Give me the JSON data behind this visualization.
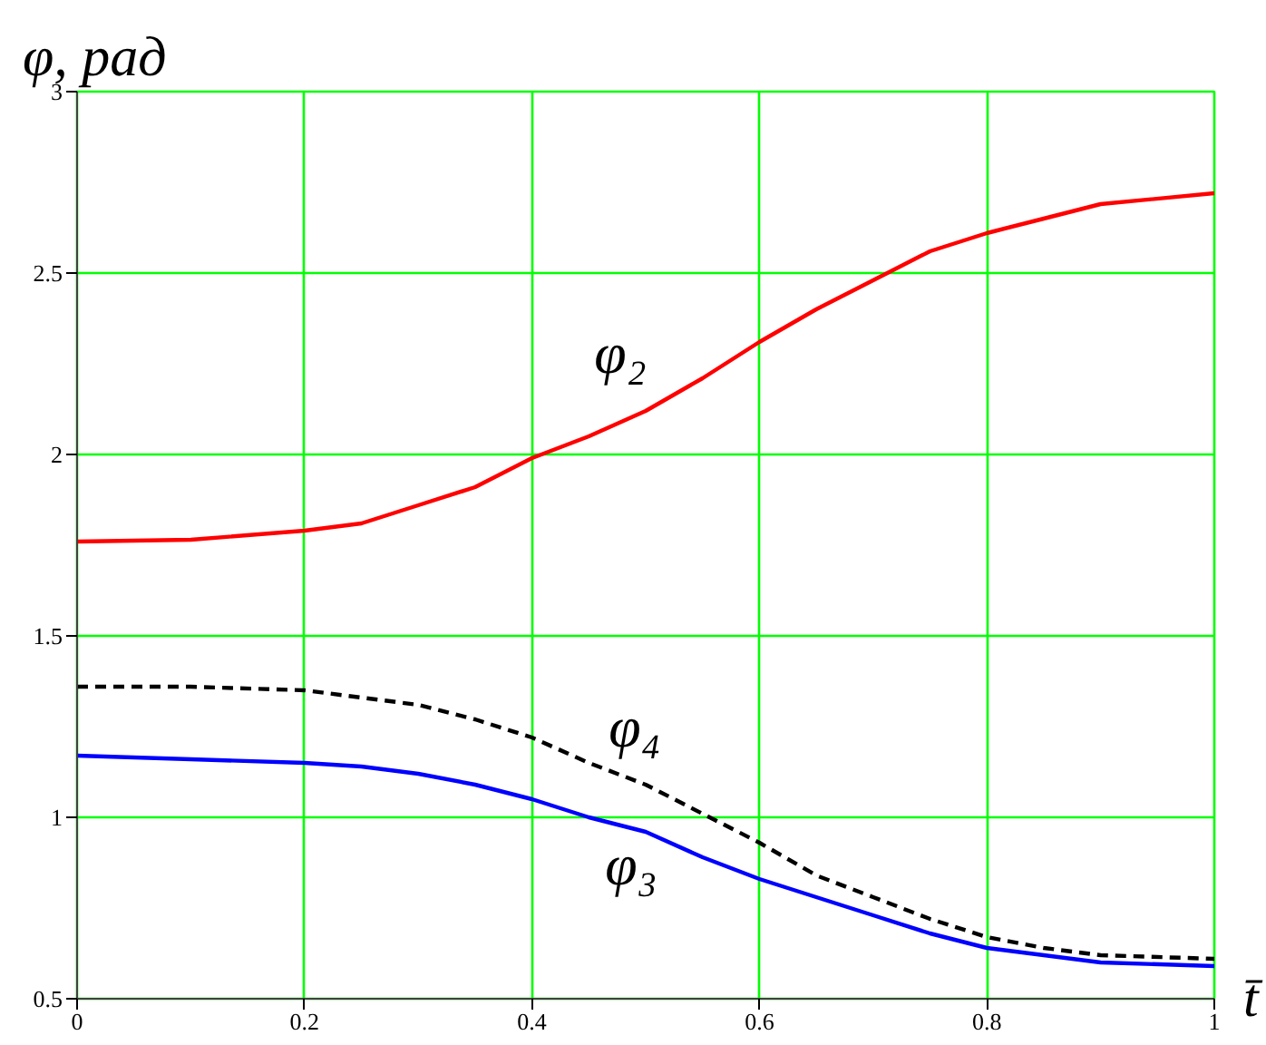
{
  "chart_data": {
    "type": "line",
    "ylabel": "φ, рад",
    "xlabel": "t̄",
    "x": [
      0,
      0.1,
      0.2,
      0.25,
      0.3,
      0.35,
      0.4,
      0.45,
      0.5,
      0.55,
      0.6,
      0.65,
      0.7,
      0.75,
      0.8,
      0.85,
      0.9,
      1
    ],
    "xlim": [
      0,
      1
    ],
    "ylim": [
      0.5,
      3
    ],
    "xticks": [
      0,
      0.2,
      0.4,
      0.6,
      0.8,
      1
    ],
    "yticks": [
      0.5,
      1,
      1.5,
      2,
      2.5,
      3
    ],
    "grid": true,
    "marker": "none",
    "series": [
      {
        "name": "φ₂",
        "color": "#ff0000",
        "line_style": "solid",
        "values": [
          1.76,
          1.765,
          1.79,
          1.81,
          1.86,
          1.91,
          1.99,
          2.05,
          2.12,
          2.21,
          2.31,
          2.4,
          2.48,
          2.56,
          2.61,
          2.65,
          2.69,
          2.72
        ]
      },
      {
        "name": "φ₄",
        "color": "#000000",
        "line_style": "dashed",
        "values": [
          1.36,
          1.36,
          1.35,
          1.33,
          1.31,
          1.27,
          1.22,
          1.15,
          1.09,
          1.01,
          0.93,
          0.84,
          0.78,
          0.72,
          0.67,
          0.64,
          0.62,
          0.61
        ]
      },
      {
        "name": "φ₃",
        "color": "#0000ff",
        "line_style": "solid",
        "values": [
          1.17,
          1.16,
          1.15,
          1.14,
          1.12,
          1.09,
          1.05,
          1.0,
          0.96,
          0.89,
          0.83,
          0.78,
          0.73,
          0.68,
          0.64,
          0.62,
          0.6,
          0.59
        ]
      }
    ]
  }
}
